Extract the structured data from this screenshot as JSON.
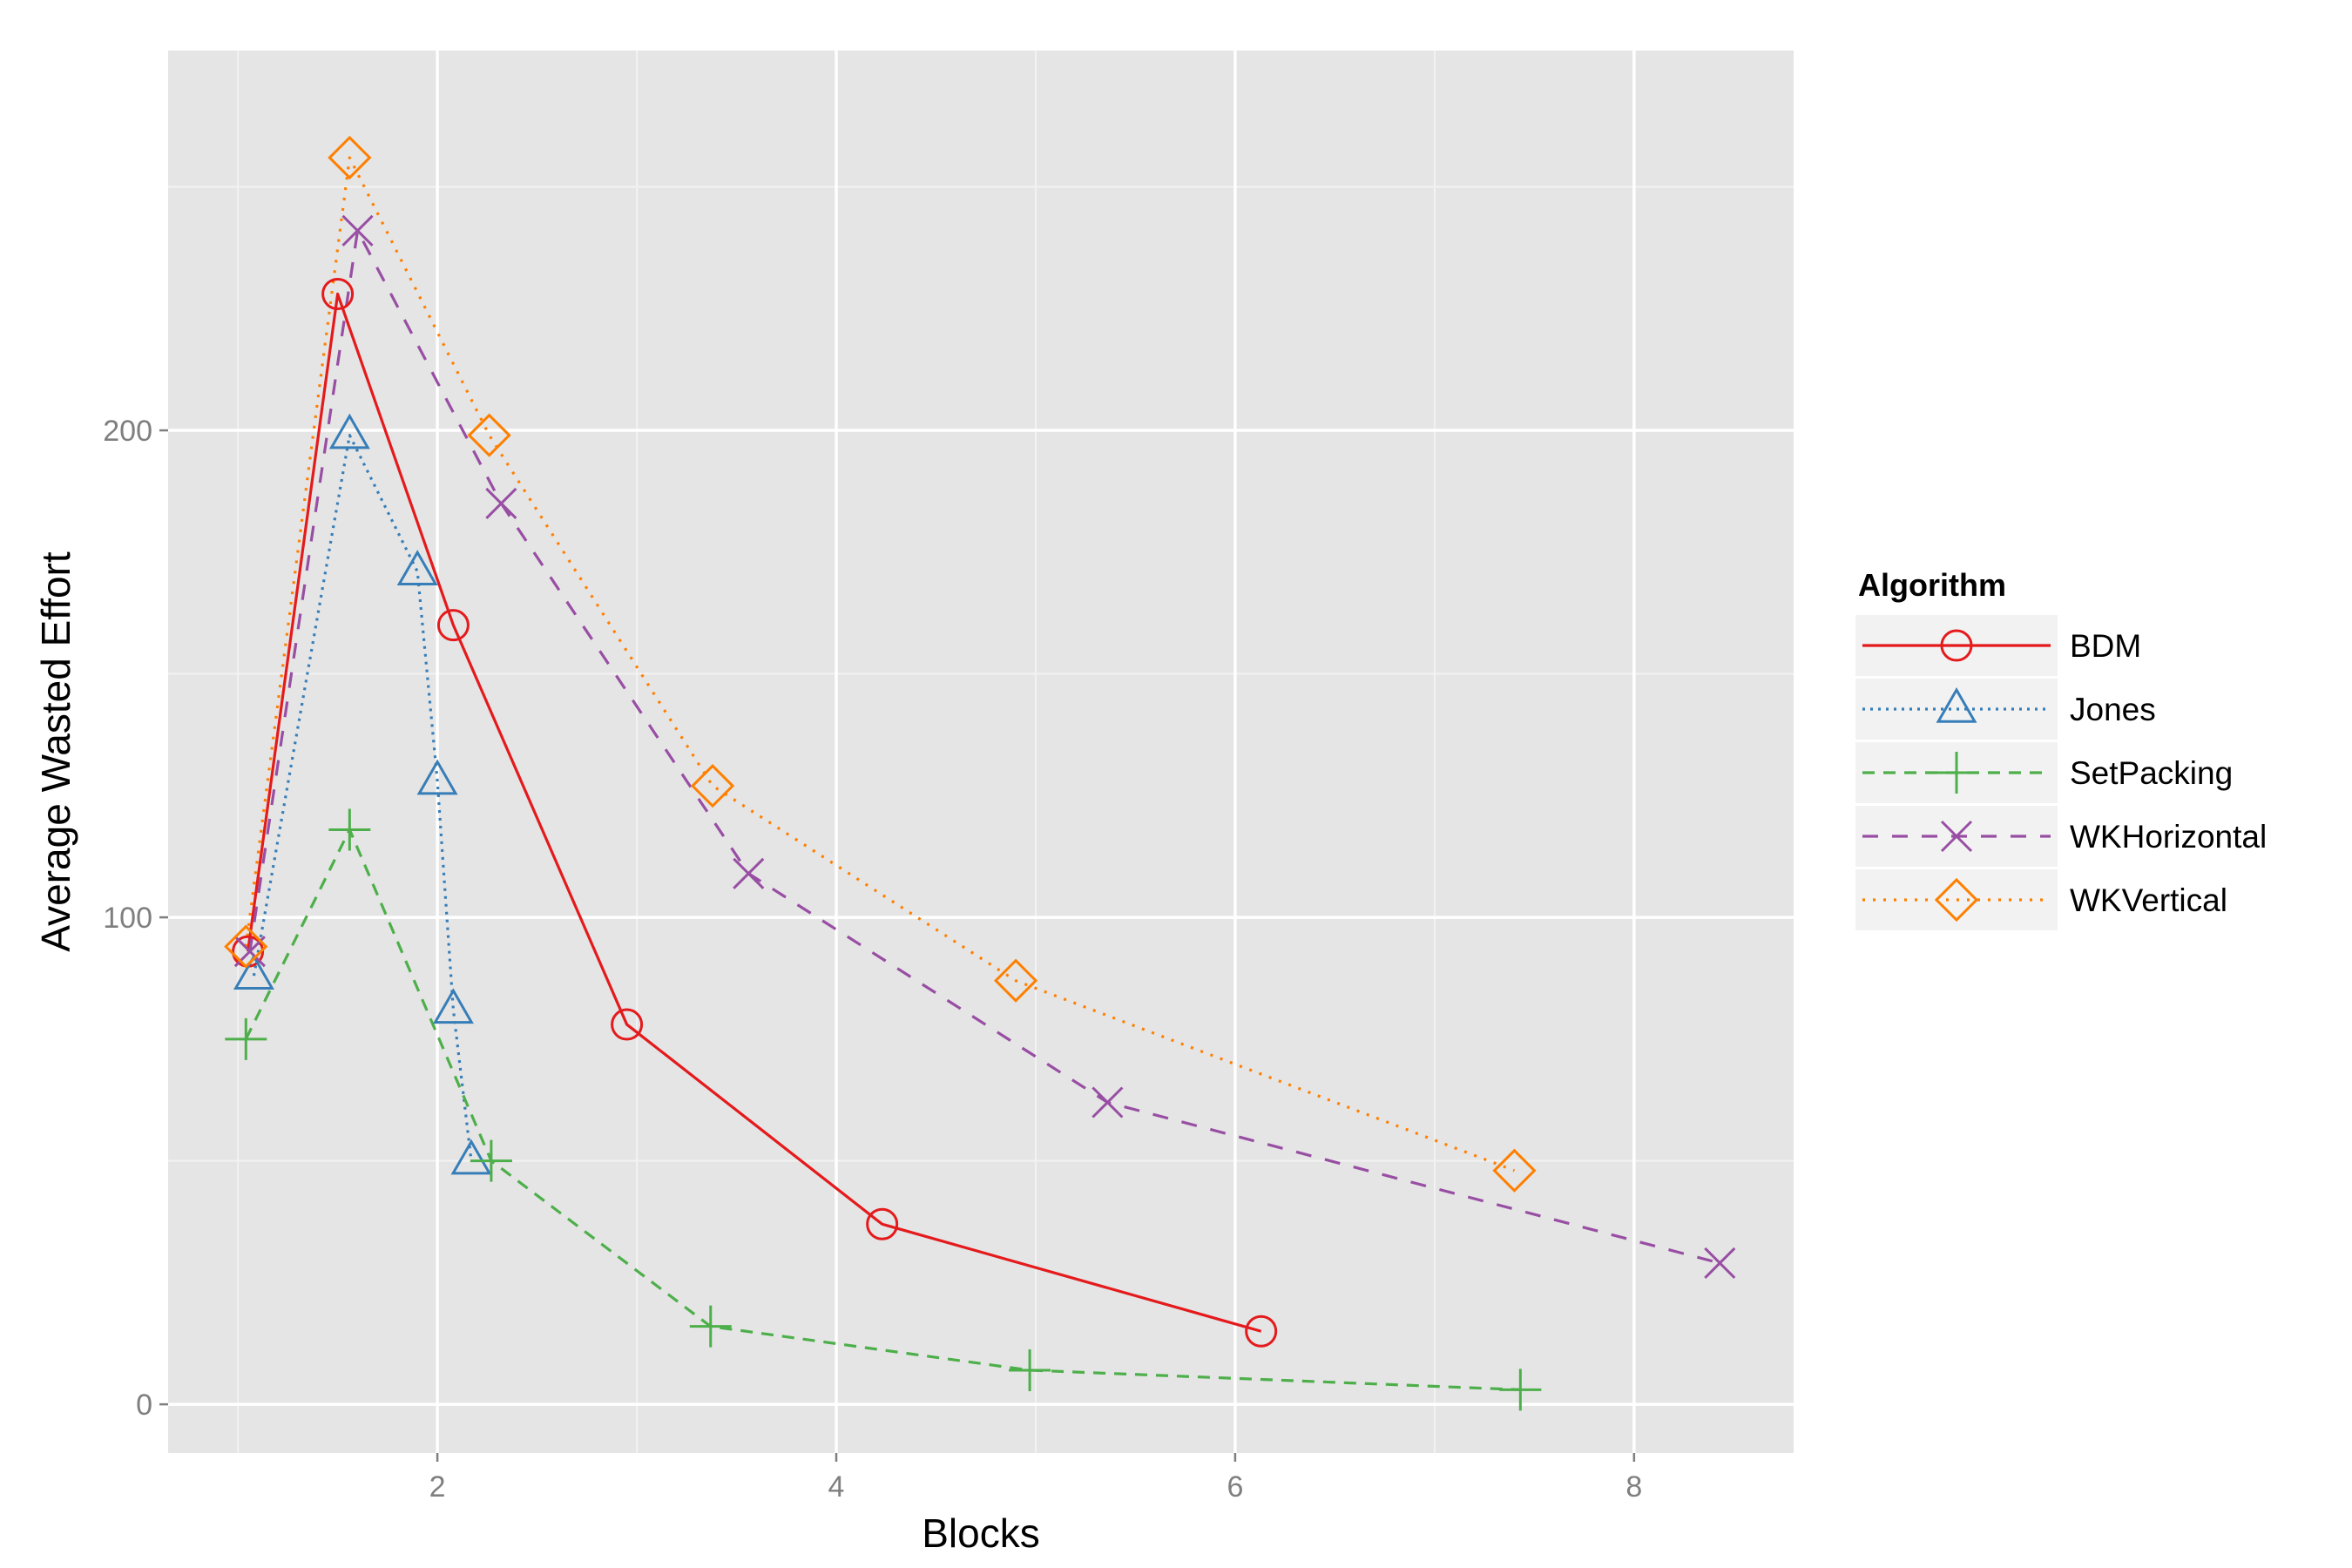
{
  "chart_data": {
    "type": "line",
    "xlabel": "Blocks",
    "ylabel": "Average Wasted Effort",
    "xlim": [
      0.65,
      8.8
    ],
    "ylim": [
      -10,
      278
    ],
    "x_ticks": [
      2,
      4,
      6,
      8
    ],
    "y_ticks": [
      0,
      100,
      200
    ],
    "x_tick_labels": [
      "2",
      "4",
      "6",
      "8"
    ],
    "y_tick_labels": [
      "0",
      "100",
      "200"
    ],
    "grid": true,
    "legend": {
      "title": "Algorithm",
      "placement": "right"
    },
    "series": [
      {
        "name": "BDM",
        "color": "#E41A1C",
        "marker": "circle",
        "line": "solid",
        "x": [
          1.05,
          1.5,
          2.08,
          2.95,
          4.23,
          6.13
        ],
        "y": [
          93,
          228,
          160,
          78,
          37,
          15
        ]
      },
      {
        "name": "Jones",
        "color": "#377EB8",
        "marker": "triangle",
        "line": "dotted",
        "x": [
          1.08,
          1.56,
          1.9,
          2.0,
          2.08,
          2.17
        ],
        "y": [
          88,
          199,
          171,
          128,
          81,
          50
        ]
      },
      {
        "name": "SetPacking",
        "color": "#4DAF4A",
        "marker": "plus",
        "line": "dashed",
        "x": [
          1.04,
          1.56,
          2.27,
          3.37,
          4.97,
          7.43
        ],
        "y": [
          75,
          118,
          50,
          16,
          7,
          3
        ]
      },
      {
        "name": "WKHorizontal",
        "color": "#984EA3",
        "marker": "x",
        "line": "longdash",
        "x": [
          1.06,
          1.6,
          2.32,
          3.56,
          5.36,
          8.43
        ],
        "y": [
          93,
          241,
          185,
          109,
          62,
          29
        ]
      },
      {
        "name": "WKVertical",
        "color": "#FF7F00",
        "marker": "diamond",
        "line": "dotted2",
        "x": [
          1.04,
          1.56,
          2.26,
          3.38,
          4.9,
          7.4
        ],
        "y": [
          94,
          256,
          199,
          127,
          87,
          48
        ]
      }
    ]
  }
}
